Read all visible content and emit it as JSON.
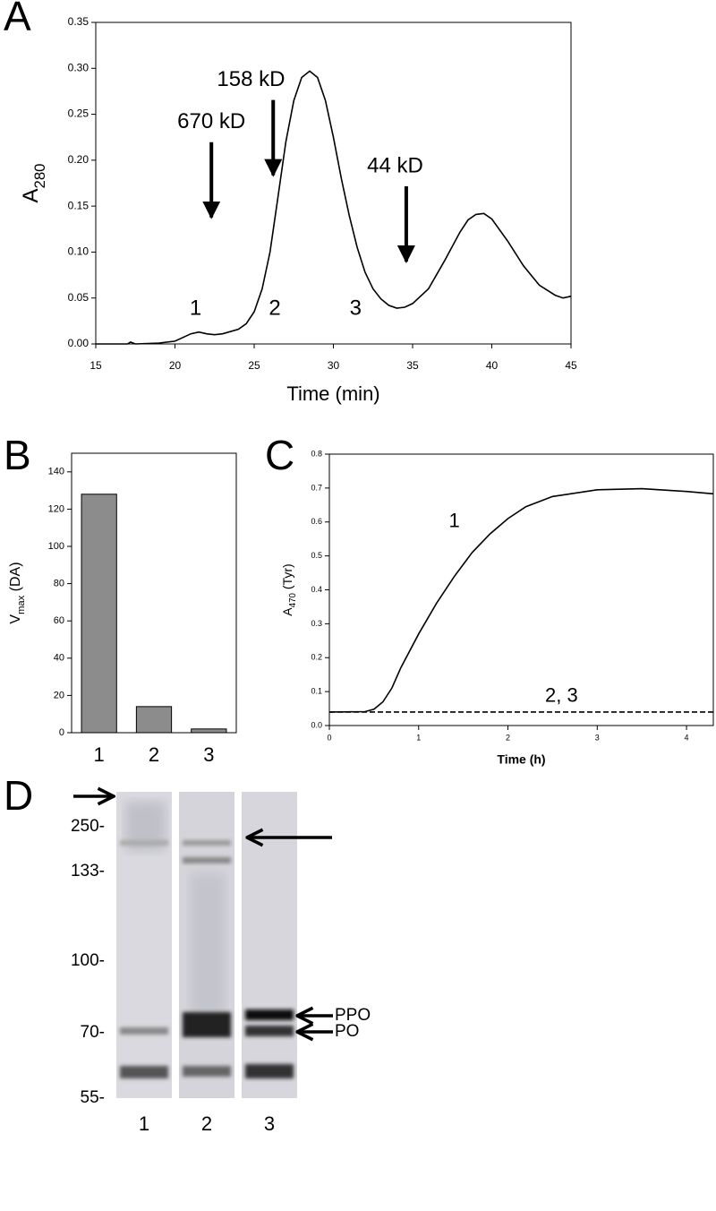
{
  "chart_data": [
    {
      "type": "line",
      "panel_label": "A",
      "xlabel": "Time (min)",
      "ylabel": "A",
      "ylabel_sub": "280",
      "x": [
        15,
        17,
        17.2,
        17.5,
        19,
        20,
        20.5,
        21,
        21.5,
        22,
        22.5,
        23,
        24,
        24.5,
        25,
        25.5,
        26,
        26.5,
        27,
        27.5,
        28,
        28.5,
        29,
        29.5,
        30,
        30.5,
        31,
        31.5,
        32,
        32.5,
        33,
        33.5,
        34,
        34.5,
        35,
        36,
        37,
        38,
        38.5,
        39,
        39.5,
        40,
        41,
        42,
        43,
        44,
        44.5,
        45
      ],
      "series": [
        {
          "color": "#000000",
          "dashed": false,
          "values": [
            0,
            0,
            0.002,
            0,
            0.001,
            0.003,
            0.007,
            0.011,
            0.013,
            0.011,
            0.01,
            0.011,
            0.016,
            0.022,
            0.035,
            0.06,
            0.1,
            0.16,
            0.22,
            0.265,
            0.29,
            0.297,
            0.29,
            0.265,
            0.225,
            0.18,
            0.14,
            0.105,
            0.078,
            0.06,
            0.049,
            0.042,
            0.039,
            0.04,
            0.044,
            0.06,
            0.09,
            0.122,
            0.135,
            0.141,
            0.142,
            0.136,
            0.112,
            0.085,
            0.064,
            0.053,
            0.05,
            0.052
          ]
        }
      ],
      "xlim": [
        15,
        45
      ],
      "xticks": [
        15,
        20,
        25,
        30,
        35,
        40,
        45
      ],
      "ylim": [
        0,
        0.35
      ],
      "yticks": [
        {
          "value": 0,
          "label": "0.00"
        },
        {
          "value": 0.05,
          "label": "0.05"
        },
        {
          "value": 0.1,
          "label": "0.10"
        },
        {
          "value": 0.15,
          "label": "0.15"
        },
        {
          "value": 0.2,
          "label": "0.20"
        },
        {
          "value": 0.25,
          "label": "0.25"
        },
        {
          "value": 0.3,
          "label": "0.30"
        },
        {
          "value": 0.35,
          "label": "0.35"
        }
      ],
      "annotations": [
        {
          "text": "670 kD",
          "x": 22.3,
          "y": 0.241,
          "arrow": true,
          "arrow_x": 22.3
        },
        {
          "text": "158 kD",
          "x": 24.8,
          "y": 0.287,
          "arrow": true,
          "arrow_x": 26.2
        },
        {
          "text": "44 kD",
          "x": 33.9,
          "y": 0.193,
          "arrow": true,
          "arrow_x": 34.6
        },
        {
          "text": "1",
          "x": 21.3,
          "y": 0.038,
          "arrow": false
        },
        {
          "text": "2",
          "x": 26.3,
          "y": 0.038,
          "arrow": false
        },
        {
          "text": "3",
          "x": 31.4,
          "y": 0.038,
          "arrow": false
        }
      ]
    },
    {
      "type": "bar",
      "panel_label": "B",
      "ylabel": "V",
      "ylabel_sub": "max",
      "ylabel_tail": " (DA)",
      "categories": [
        "1",
        "2",
        "3"
      ],
      "values": [
        128,
        14,
        2
      ],
      "color": "#8c8c8c",
      "ylim": [
        0,
        150
      ],
      "yticks": [
        0,
        20,
        40,
        60,
        80,
        100,
        120,
        140
      ]
    },
    {
      "type": "line",
      "panel_label": "C",
      "xlabel": "Time (h)",
      "ylabel": "A",
      "ylabel_sub": "470",
      "ylabel_tail": " (Tyr)",
      "x": [
        0,
        0.4,
        0.5,
        0.6,
        0.7,
        0.8,
        1,
        1.2,
        1.4,
        1.6,
        1.8,
        2,
        2.2,
        2.5,
        3,
        3.5,
        4,
        4.3
      ],
      "series": [
        {
          "color": "#000000",
          "dashed": false,
          "values": [
            0.04,
            0.041,
            0.048,
            0.07,
            0.11,
            0.17,
            0.27,
            0.36,
            0.44,
            0.51,
            0.565,
            0.61,
            0.645,
            0.675,
            0.695,
            0.698,
            0.69,
            0.683
          ]
        },
        {
          "color": "#000000",
          "dashed": true,
          "values": [
            0.04,
            0.04,
            0.04,
            0.04,
            0.04,
            0.04,
            0.04,
            0.04,
            0.04,
            0.04,
            0.04,
            0.04,
            0.04,
            0.04,
            0.04,
            0.04,
            0.04,
            0.04
          ]
        }
      ],
      "xlim": [
        0,
        4.3
      ],
      "xticks": [
        0,
        1,
        2,
        3,
        4
      ],
      "ylim": [
        0,
        0.8
      ],
      "yticks": [
        {
          "value": 0,
          "label": "0.0"
        },
        0.1,
        0.2,
        0.3,
        0.4,
        0.5,
        0.6,
        0.7,
        0.8
      ],
      "annotations": [
        {
          "text": "1",
          "x": 1.4,
          "y": 0.6,
          "arrow": false
        },
        {
          "text": "2, 3",
          "x": 2.6,
          "y": 0.085,
          "arrow": false
        }
      ]
    }
  ],
  "gel": {
    "panel_label": "D",
    "markers": [
      "250-",
      "133-",
      "100-",
      "70-",
      "55-"
    ],
    "lanes": [
      "1",
      "2",
      "3"
    ],
    "bands": [
      "PPO",
      "PO"
    ]
  }
}
